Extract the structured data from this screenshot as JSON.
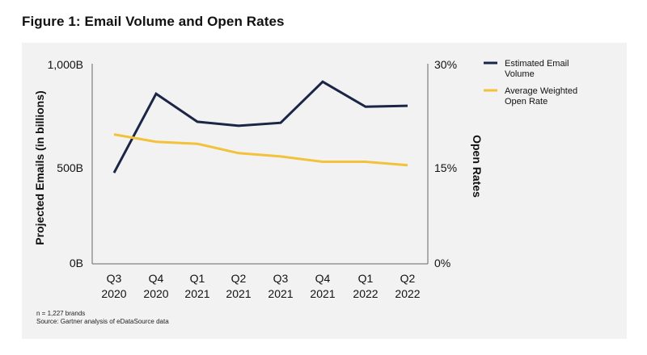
{
  "figure_title": "Figure 1: Email Volume and Open Rates",
  "colors": {
    "volume": "#1b2545",
    "open_rate": "#f2c23b",
    "panel": "#f2f2f2",
    "axis": "#666666"
  },
  "chart_data": {
    "type": "line",
    "categories": [
      [
        "Q3",
        "2020"
      ],
      [
        "Q4",
        "2020"
      ],
      [
        "Q1",
        "2021"
      ],
      [
        "Q2",
        "2021"
      ],
      [
        "Q3",
        "2021"
      ],
      [
        "Q4",
        "2021"
      ],
      [
        "Q1",
        "2022"
      ],
      [
        "Q2",
        "2022"
      ]
    ],
    "y_left": {
      "label": "Projected Emails (in billions)",
      "ticks": [
        "0B",
        "500B",
        "1,000B"
      ],
      "tick_values": [
        0,
        500,
        1000
      ],
      "ylim": [
        0,
        1000
      ]
    },
    "y_right": {
      "label": "Open Rates",
      "ticks": [
        "0%",
        "15%",
        "30%"
      ],
      "tick_values": [
        0,
        15,
        30
      ],
      "ylim": [
        0,
        30
      ]
    },
    "series": [
      {
        "name": "Estimated Email Volume",
        "axis": "left",
        "values": [
          455,
          850,
          710,
          690,
          705,
          910,
          785,
          790
        ]
      },
      {
        "name": "Average Weighted Open Rate",
        "axis": "right",
        "values": [
          19.4,
          18.3,
          18.0,
          16.6,
          16.1,
          15.3,
          15.3,
          14.8
        ]
      }
    ],
    "legend": {
      "position": "top-right",
      "entries": [
        {
          "lines": [
            "Estimated Email",
            "Volume"
          ]
        },
        {
          "lines": [
            "Average Weighted",
            "Open Rate"
          ]
        }
      ]
    },
    "notes": [
      "n = 1,227 brands",
      "Source: Gartner analysis of eDataSource data"
    ],
    "grid": false
  }
}
